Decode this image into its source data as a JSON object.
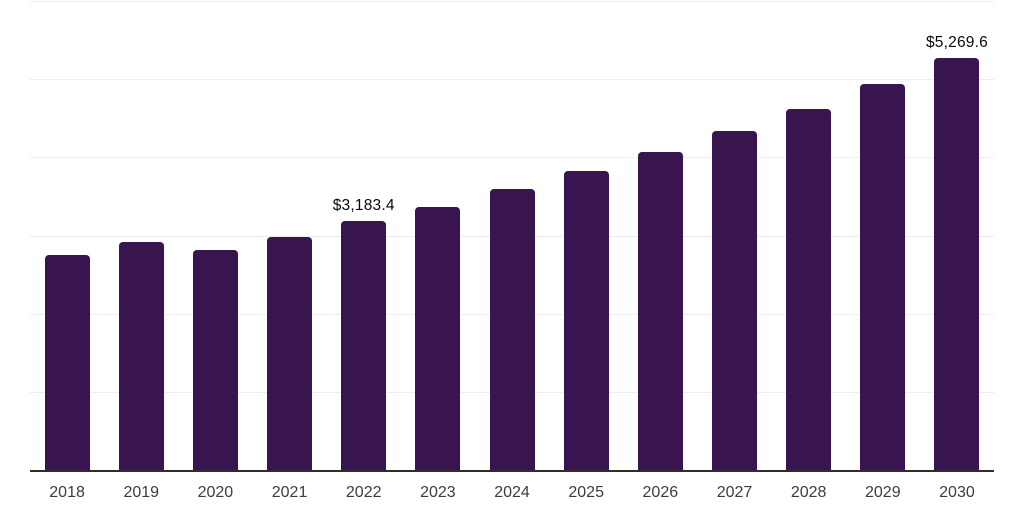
{
  "chart_data": {
    "type": "bar",
    "categories": [
      "2018",
      "2019",
      "2020",
      "2021",
      "2022",
      "2023",
      "2024",
      "2025",
      "2026",
      "2027",
      "2028",
      "2029",
      "2030"
    ],
    "values": [
      2750,
      2920,
      2815,
      2985,
      3183.4,
      3370,
      3590,
      3825,
      4065,
      4335,
      4615,
      4940,
      5269.6
    ],
    "annotations": [
      {
        "category": "2022",
        "text": "$3,183.4"
      },
      {
        "category": "2030",
        "text": "$5,269.6"
      }
    ],
    "title": "",
    "xlabel": "",
    "ylabel": "",
    "ylim": [
      0,
      6000
    ],
    "gridline_step": 1000,
    "grid": "horizontal",
    "legend": "none",
    "y_tick_labels_visible": false,
    "bar_color": "#38154F",
    "background_color": "#ffffff",
    "gridline_color": "#ededed",
    "axis_line_color": "#2e2e2e",
    "tick_label_color": "#3c3c3c",
    "value_label_color": "#0a0a0a"
  }
}
